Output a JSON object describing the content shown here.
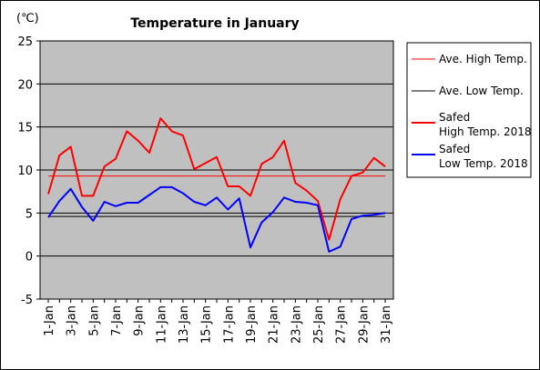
{
  "chart_data": {
    "type": "line",
    "title": "Temperature in January",
    "unit_label": "(℃)",
    "ylim": [
      -5,
      25
    ],
    "y_ticks": [
      -5,
      0,
      5,
      10,
      15,
      20,
      25
    ],
    "grid": true,
    "plot_background": "#c0c0c0",
    "legend_position": "right",
    "x": [
      "1-Jan",
      "2-Jan",
      "3-Jan",
      "4-Jan",
      "5-Jan",
      "6-Jan",
      "7-Jan",
      "8-Jan",
      "9-Jan",
      "10-Jan",
      "11-Jan",
      "12-Jan",
      "13-Jan",
      "14-Jan",
      "15-Jan",
      "16-Jan",
      "17-Jan",
      "18-Jan",
      "19-Jan",
      "20-Jan",
      "21-Jan",
      "22-Jan",
      "23-Jan",
      "24-Jan",
      "25-Jan",
      "26-Jan",
      "27-Jan",
      "28-Jan",
      "29-Jan",
      "30-Jan",
      "31-Jan"
    ],
    "x_tick_labels": [
      "1-Jan",
      "3-Jan",
      "5-Jan",
      "7-Jan",
      "9-Jan",
      "11-Jan",
      "13-Jan",
      "15-Jan",
      "17-Jan",
      "19-Jan",
      "21-Jan",
      "23-Jan",
      "25-Jan",
      "27-Jan",
      "29-Jan",
      "31-Jan"
    ],
    "series": [
      {
        "name": "Ave. High Temp.",
        "color": "#ff0000",
        "width": 1,
        "values": [
          9.3,
          9.3,
          9.3,
          9.3,
          9.3,
          9.3,
          9.3,
          9.3,
          9.3,
          9.3,
          9.3,
          9.3,
          9.3,
          9.3,
          9.3,
          9.3,
          9.3,
          9.3,
          9.3,
          9.3,
          9.3,
          9.3,
          9.3,
          9.3,
          9.3,
          9.3,
          9.3,
          9.3,
          9.3,
          9.3,
          9.3
        ]
      },
      {
        "name": "Ave. Low Temp.",
        "color": "#000000",
        "width": 1,
        "values": [
          4.6,
          4.6,
          4.6,
          4.6,
          4.6,
          4.6,
          4.6,
          4.6,
          4.6,
          4.6,
          4.6,
          4.6,
          4.6,
          4.6,
          4.6,
          4.6,
          4.6,
          4.6,
          4.6,
          4.6,
          4.6,
          4.6,
          4.6,
          4.6,
          4.6,
          4.6,
          4.6,
          4.6,
          4.6,
          4.6,
          4.6
        ]
      },
      {
        "name": "Safed\nHigh Temp. 2018",
        "color": "#ff0000",
        "width": 2,
        "values": [
          7.2,
          11.7,
          12.7,
          7.0,
          7.0,
          10.4,
          11.3,
          14.5,
          13.4,
          12.0,
          16.0,
          14.5,
          14.0,
          10.1,
          10.8,
          11.5,
          8.1,
          8.1,
          7.0,
          10.7,
          11.5,
          13.4,
          8.5,
          7.6,
          6.4,
          1.9,
          6.6,
          9.3,
          9.7,
          11.4,
          10.4
        ]
      },
      {
        "name": "Safed\nLow Temp. 2018",
        "color": "#0000ff",
        "width": 2,
        "values": [
          4.5,
          6.4,
          7.8,
          5.7,
          4.1,
          6.3,
          5.8,
          6.2,
          6.2,
          7.1,
          8.0,
          8.0,
          7.3,
          6.3,
          5.9,
          6.8,
          5.4,
          6.7,
          1.0,
          3.9,
          5.1,
          6.8,
          6.3,
          6.2,
          5.9,
          0.5,
          1.1,
          4.3,
          4.7,
          4.8,
          5.0
        ]
      }
    ]
  }
}
